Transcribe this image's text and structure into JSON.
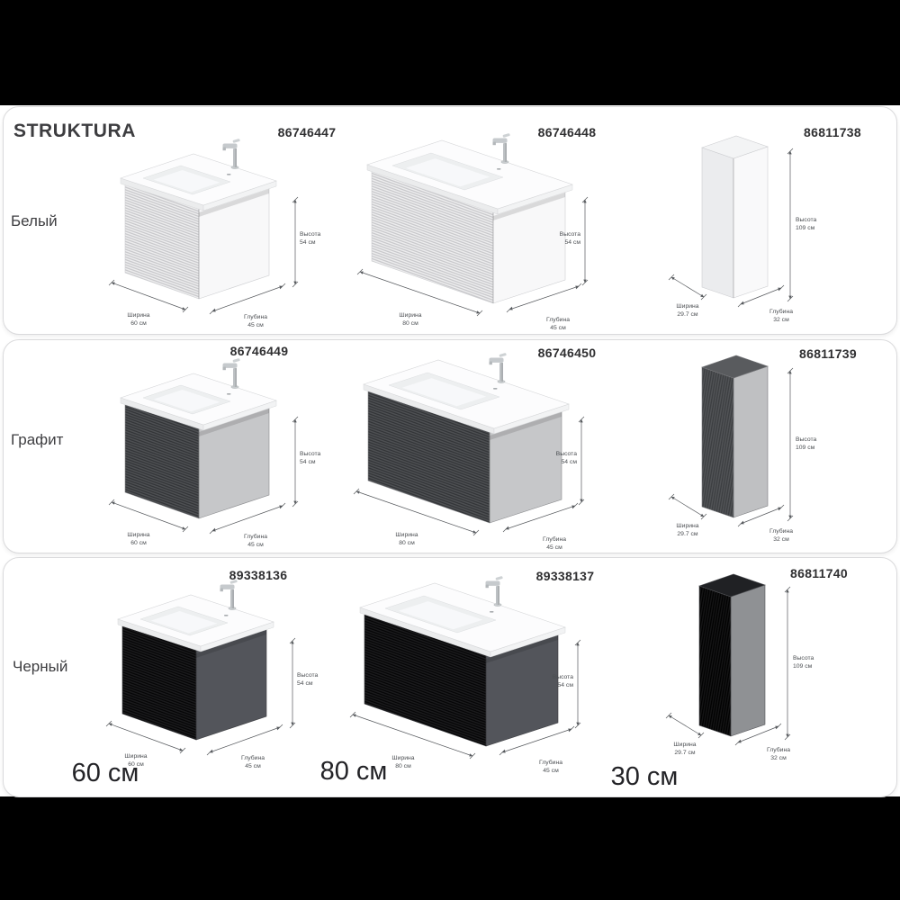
{
  "title": "STRUKTURA",
  "palette": {
    "letterbox": "#000000",
    "card_bg": "#ffffff",
    "text_dark": "#3d3d40",
    "code_text": "#2f2f31",
    "dim_line": "#55585c",
    "dim_text": "#4b4e52",
    "slab": "#fcfcfd",
    "slab_edge_front": "#ebeced",
    "slab_edge_right": "#f2f3f4",
    "basin": "#edeff0",
    "basin_inner": "#f7f8fa",
    "chrome": "#c6cacd"
  },
  "rows": [
    {
      "color_name": "Белый",
      "products": [
        {
          "code": "86746447",
          "type": "vanity60",
          "colors": {
            "front": "#ededee",
            "rib": "#c6c6c9",
            "side": "#f8f8f9",
            "edge": "#cdced1"
          },
          "dims": {
            "width": {
              "label": "Ширина",
              "value": "60 см"
            },
            "depth": {
              "label": "Глубина",
              "value": "45 см"
            },
            "height": {
              "label": "Высота",
              "value": "54 см"
            }
          }
        },
        {
          "code": "86746448",
          "type": "vanity80",
          "colors": {
            "front": "#ededee",
            "rib": "#c6c6c9",
            "side": "#f8f8f9",
            "edge": "#cdced1"
          },
          "dims": {
            "width": {
              "label": "Ширина",
              "value": "80 см"
            },
            "depth": {
              "label": "Глубина",
              "value": "45 см"
            },
            "height": {
              "label": "Высота",
              "value": "54 см"
            }
          }
        },
        {
          "code": "86811738",
          "type": "tall",
          "colors": {
            "front": "#ebecee",
            "rib": null,
            "side": "#f9f9fa",
            "top": "#f3f4f5",
            "edge": "#cdced1"
          },
          "dims": {
            "width": {
              "label": "Ширина",
              "value": "29.7 см"
            },
            "depth": {
              "label": "Глубина",
              "value": "32 см"
            },
            "height": {
              "label": "Высота",
              "value": "109 см"
            }
          }
        }
      ]
    },
    {
      "color_name": "Графит",
      "products": [
        {
          "code": "86746449",
          "type": "vanity60",
          "colors": {
            "front": "#4e5053",
            "rib": "#313336",
            "side": "#c6c7c9",
            "edge": "#8a8b8e"
          },
          "dims": {
            "width": {
              "label": "Ширина",
              "value": "60 см"
            },
            "depth": {
              "label": "Глубина",
              "value": "45 см"
            },
            "height": {
              "label": "Высота",
              "value": "54 см"
            }
          }
        },
        {
          "code": "86746450",
          "type": "vanity80",
          "colors": {
            "front": "#4e5053",
            "rib": "#313336",
            "side": "#c6c7c9",
            "edge": "#8a8b8e"
          },
          "dims": {
            "width": {
              "label": "Ширина",
              "value": "80 см"
            },
            "depth": {
              "label": "Глубина",
              "value": "45 см"
            },
            "height": {
              "label": "Высота",
              "value": "54 см"
            }
          }
        },
        {
          "code": "86811739",
          "type": "tall",
          "colors": {
            "front": "#515356",
            "rib": "#3b3d40",
            "side": "#bfc0c2",
            "top": "#595b5e",
            "edge": "#78797c"
          },
          "dims": {
            "width": {
              "label": "Ширина",
              "value": "29.7 см"
            },
            "depth": {
              "label": "Глубина",
              "value": "32 см"
            },
            "height": {
              "label": "Высота",
              "value": "109 см"
            }
          }
        }
      ]
    },
    {
      "color_name": "Черный",
      "products": [
        {
          "code": "89338136",
          "type": "vanity60",
          "colors": {
            "front": "#1b1b1d",
            "rib": "#040405",
            "side": "#53555b",
            "edge": "#3a3b3f"
          },
          "dims": {
            "width": {
              "label": "Ширина",
              "value": "60 см"
            },
            "depth": {
              "label": "Глубина",
              "value": "45 см"
            },
            "height": {
              "label": "Высота",
              "value": "54 см"
            }
          }
        },
        {
          "code": "89338137",
          "type": "vanity80",
          "colors": {
            "front": "#1b1b1d",
            "rib": "#040405",
            "side": "#53555b",
            "edge": "#3a3b3f"
          },
          "dims": {
            "width": {
              "label": "Ширина",
              "value": "80 см"
            },
            "depth": {
              "label": "Глубина",
              "value": "45 см"
            },
            "height": {
              "label": "Высота",
              "value": "54 см"
            }
          }
        },
        {
          "code": "86811740",
          "type": "tall",
          "colors": {
            "front": "#141415",
            "rib": "#000000",
            "side": "#8f9194",
            "top": "#202124",
            "edge": "#525357"
          },
          "dims": {
            "width": {
              "label": "Ширина",
              "value": "29.7 см"
            },
            "depth": {
              "label": "Глубина",
              "value": "32 см"
            },
            "height": {
              "label": "Высота",
              "value": "109 см"
            }
          }
        }
      ]
    }
  ],
  "footer": {
    "sizes": [
      "60 см",
      "80 см",
      "30 см"
    ]
  }
}
